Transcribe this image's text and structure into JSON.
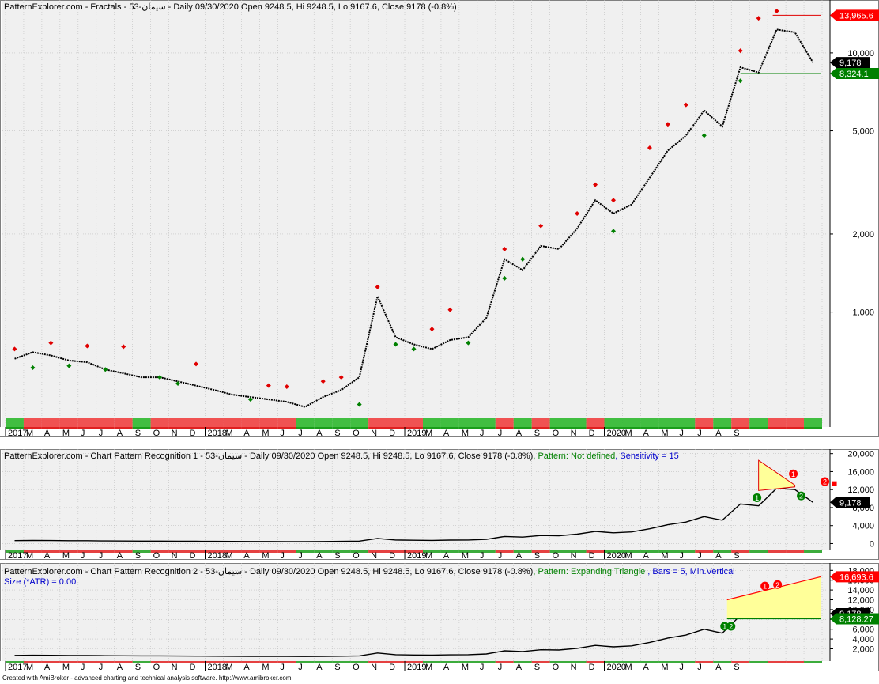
{
  "colors": {
    "background": "#f0f0f0",
    "grid": "#bfbfbf",
    "price": "#000000",
    "up_fractal": "#e00000",
    "down_fractal": "#008000",
    "triangle_fill": "#ffff99",
    "label_red": "#ff0000",
    "label_green": "#008000",
    "label_black": "#000000"
  },
  "footer_text": "Created with AmiBroker - advanced charting and technical analysis software. http://www.amibroker.com",
  "panes": [
    {
      "id": "fractals",
      "title": "PatternExplorer.com - Fractals - سیمان-53 - Daily 09/30/2020 Open 9248.5, Hi 9248.5, Lo 9167.6, Close 9178 (-0.8%)",
      "scale": "log",
      "y_ticks": [
        "1,000",
        "2,000",
        "5,000",
        "10,000"
      ],
      "value_labels": [
        {
          "text": "13,965.6",
          "value": 13965.6,
          "color": "red"
        },
        {
          "text": "9,178",
          "value": 9178,
          "color": "black"
        },
        {
          "text": "8,324.1",
          "value": 8324.1,
          "color": "green"
        }
      ],
      "x_labels": [
        "2017",
        "M",
        "A",
        "M",
        "J",
        "J",
        "A",
        "S",
        "O",
        "N",
        "D",
        "2018",
        "M",
        "A",
        "M",
        "J",
        "J",
        "A",
        "S",
        "O",
        "N",
        "D",
        "2019",
        "M",
        "A",
        "M",
        "J",
        "J",
        "A",
        "S",
        "O",
        "N",
        "D",
        "2020",
        "M",
        "A",
        "M",
        "J",
        "J",
        "A",
        "S"
      ]
    },
    {
      "id": "cpr1",
      "title_main": "PatternExplorer.com - Chart Pattern Recognition 1  - سیمان-53 - Daily 09/30/2020 Open 9248.5, Hi 9248.5, Lo 9167.6, Close 9178 (-0.8%)",
      "title_pattern": ", Pattern: Not defined",
      "title_sensitivity": ", Sensitivity = 15",
      "scale": "linear",
      "y_ticks": [
        "0",
        "4,000",
        "8,000",
        "12,000",
        "16,000",
        "20,000"
      ],
      "value_labels": [
        {
          "text": "9,178",
          "value": 9178,
          "color": "black"
        }
      ],
      "markers": [
        {
          "text": "1",
          "color": "red"
        },
        {
          "text": "2",
          "color": "red"
        },
        {
          "text": "1",
          "color": "green"
        },
        {
          "text": "2",
          "color": "green"
        }
      ],
      "x_labels": [
        "2017",
        "M",
        "A",
        "M",
        "J",
        "J",
        "A",
        "S",
        "O",
        "N",
        "D",
        "2018",
        "M",
        "A",
        "M",
        "J",
        "J",
        "A",
        "S",
        "O",
        "N",
        "D",
        "2019",
        "M",
        "A",
        "M",
        "J",
        "J",
        "A",
        "S",
        "O",
        "N",
        "D",
        "2020",
        "M",
        "A",
        "M",
        "J",
        "J",
        "A",
        "S"
      ]
    },
    {
      "id": "cpr2",
      "title_main": "PatternExplorer.com - Chart Pattern Recognition 2 - سیمان-53 - Daily 09/30/2020 Open 9248.5, Hi 9248.5, Lo 9167.6, Close 9178 (-0.8%)",
      "title_pattern": ", Pattern: Expanding Triangle",
      "title_bars": " , Bars = 5, Min.Vertical",
      "title_line2": "Size (*ATR) = 0.00",
      "scale": "linear",
      "y_ticks": [
        "2,000",
        "4,000",
        "6,000",
        "8,000",
        "10,000",
        "12,000",
        "14,000",
        "16,000",
        "18,000"
      ],
      "value_labels": [
        {
          "text": "16,693.6",
          "value": 16693.6,
          "color": "red"
        },
        {
          "text": "9,178",
          "value": 9178,
          "color": "black"
        },
        {
          "text": "8,128.27",
          "value": 8128.27,
          "color": "green"
        }
      ],
      "markers": [
        {
          "text": "1",
          "color": "red"
        },
        {
          "text": "2",
          "color": "red"
        },
        {
          "text": "1",
          "color": "green"
        },
        {
          "text": "2",
          "color": "green"
        }
      ],
      "x_labels": [
        "2017",
        "M",
        "A",
        "M",
        "J",
        "J",
        "A",
        "S",
        "O",
        "N",
        "D",
        "2018",
        "M",
        "A",
        "M",
        "J",
        "J",
        "A",
        "S",
        "O",
        "N",
        "D",
        "2019",
        "M",
        "A",
        "M",
        "J",
        "J",
        "A",
        "S",
        "O",
        "N",
        "D",
        "2020",
        "M",
        "A",
        "M",
        "J",
        "J",
        "A",
        "S"
      ]
    }
  ],
  "chart_data": {
    "type": "line",
    "series_dates": [
      "2017-01",
      "2017-02",
      "2017-03",
      "2017-04",
      "2017-05",
      "2017-06",
      "2017-07",
      "2017-08",
      "2017-09",
      "2017-10",
      "2017-11",
      "2017-12",
      "2018-01",
      "2018-02",
      "2018-03",
      "2018-04",
      "2018-05",
      "2018-06",
      "2018-07",
      "2018-08",
      "2018-09",
      "2018-10",
      "2018-11",
      "2018-12",
      "2019-01",
      "2019-02",
      "2019-03",
      "2019-04",
      "2019-05",
      "2019-06",
      "2019-07",
      "2019-08",
      "2019-09",
      "2019-10",
      "2019-11",
      "2019-12",
      "2020-01",
      "2020-02",
      "2020-03",
      "2020-04",
      "2020-05",
      "2020-06",
      "2020-07",
      "2020-08",
      "2020-09"
    ],
    "close": [
      660,
      700,
      680,
      650,
      640,
      600,
      580,
      560,
      560,
      540,
      520,
      500,
      480,
      470,
      460,
      450,
      430,
      470,
      500,
      560,
      1150,
      800,
      750,
      720,
      780,
      800,
      950,
      1600,
      1450,
      1800,
      1750,
      2100,
      2700,
      2400,
      2600,
      3300,
      4200,
      4800,
      6000,
      5200,
      8800,
      8400,
      12300,
      12000,
      9178
    ],
    "up_fractals": [
      {
        "x": "2017-01",
        "y": 720
      },
      {
        "x": "2017-03",
        "y": 760
      },
      {
        "x": "2017-05",
        "y": 740
      },
      {
        "x": "2017-07",
        "y": 735
      },
      {
        "x": "2017-11",
        "y": 630
      },
      {
        "x": "2018-03",
        "y": 520
      },
      {
        "x": "2018-04",
        "y": 515
      },
      {
        "x": "2018-06",
        "y": 540
      },
      {
        "x": "2018-07",
        "y": 560
      },
      {
        "x": "2018-09",
        "y": 1250
      },
      {
        "x": "2018-12",
        "y": 860
      },
      {
        "x": "2019-01",
        "y": 1020
      },
      {
        "x": "2019-04",
        "y": 1750
      },
      {
        "x": "2019-06",
        "y": 2150
      },
      {
        "x": "2019-08",
        "y": 2400
      },
      {
        "x": "2019-09",
        "y": 3100
      },
      {
        "x": "2019-10",
        "y": 2700
      },
      {
        "x": "2019-12",
        "y": 4300
      },
      {
        "x": "2020-01",
        "y": 5300
      },
      {
        "x": "2020-02",
        "y": 6300
      },
      {
        "x": "2020-05",
        "y": 10200
      },
      {
        "x": "2020-06",
        "y": 13600
      },
      {
        "x": "2020-07",
        "y": 14500
      }
    ],
    "down_fractals": [
      {
        "x": "2017-02",
        "y": 610
      },
      {
        "x": "2017-04",
        "y": 620
      },
      {
        "x": "2017-06",
        "y": 600
      },
      {
        "x": "2017-09",
        "y": 560
      },
      {
        "x": "2017-10",
        "y": 530
      },
      {
        "x": "2018-02",
        "y": 460
      },
      {
        "x": "2018-08",
        "y": 440
      },
      {
        "x": "2018-10",
        "y": 750
      },
      {
        "x": "2018-11",
        "y": 720
      },
      {
        "x": "2019-02",
        "y": 760
      },
      {
        "x": "2019-04",
        "y": 1350
      },
      {
        "x": "2019-05",
        "y": 1600
      },
      {
        "x": "2019-10",
        "y": 2050
      },
      {
        "x": "2020-03",
        "y": 4800
      },
      {
        "x": "2020-05",
        "y": 7800
      }
    ],
    "resistance_level": 13965.6,
    "support_level": 8324.1,
    "expanding_triangle_upper": 16693.6,
    "expanding_triangle_lower": 8128.27
  }
}
